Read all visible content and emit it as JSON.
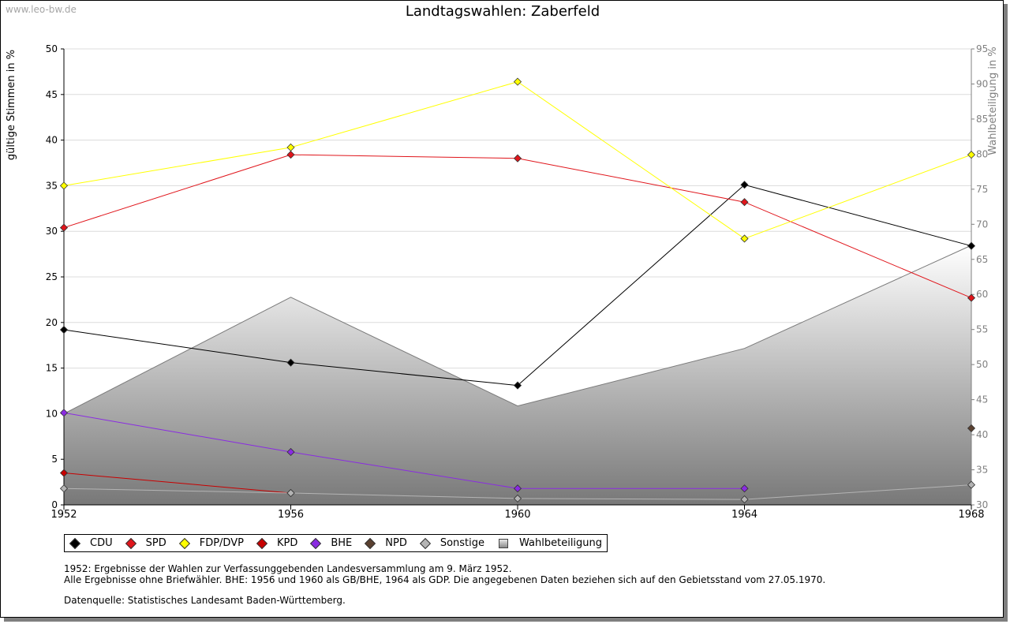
{
  "watermark": "www.leo-bw.de",
  "chart_data": {
    "type": "line",
    "title": "Landtagswahlen: Zaberfeld",
    "ylabel": "gültige Stimmen in %",
    "y2label": "Wahlbeteiligung in %",
    "x": [
      "1952",
      "1956",
      "1960",
      "1964",
      "1968"
    ],
    "ylim": [
      0,
      50
    ],
    "y2lim": [
      30,
      95
    ],
    "yticks": [
      "0",
      "5",
      "10",
      "15",
      "20",
      "25",
      "30",
      "35",
      "40",
      "45",
      "50"
    ],
    "y2ticks": [
      "30",
      "35",
      "40",
      "45",
      "50",
      "55",
      "60",
      "65",
      "70",
      "75",
      "80",
      "85",
      "90",
      "95"
    ],
    "series": [
      {
        "name": "CDU",
        "color": "#000000",
        "values": [
          19.2,
          15.6,
          13.1,
          35.1,
          28.4
        ]
      },
      {
        "name": "SPD",
        "color": "#e0151b",
        "values": [
          30.4,
          38.4,
          38.0,
          33.2,
          22.7
        ]
      },
      {
        "name": "FDP/DVP",
        "color": "#ffff00",
        "values": [
          35.0,
          39.2,
          46.4,
          29.2,
          38.4
        ]
      },
      {
        "name": "KPD",
        "color": "#c80000",
        "values": [
          3.5,
          1.3,
          null,
          null,
          null
        ]
      },
      {
        "name": "BHE",
        "color": "#8a2be2",
        "values": [
          10.1,
          5.8,
          1.8,
          1.8,
          null
        ]
      },
      {
        "name": "NPD",
        "color": "#5a4030",
        "values": [
          null,
          null,
          null,
          null,
          8.4
        ]
      },
      {
        "name": "Sonstige",
        "color": "#b4b4b4",
        "values": [
          1.8,
          1.3,
          0.7,
          0.6,
          2.2
        ]
      }
    ],
    "turnout": {
      "name": "Wahlbeteiligung",
      "values": [
        43.0,
        59.6,
        44.1,
        52.3,
        67.0
      ]
    }
  },
  "legend": [
    {
      "label": "CDU",
      "color": "#000000"
    },
    {
      "label": "SPD",
      "color": "#e0151b"
    },
    {
      "label": "FDP/DVP",
      "color": "#ffff00"
    },
    {
      "label": "KPD",
      "color": "#c80000"
    },
    {
      "label": "BHE",
      "color": "#8a2be2"
    },
    {
      "label": "NPD",
      "color": "#5a4030"
    },
    {
      "label": "Sonstige",
      "color": "#b4b4b4"
    },
    {
      "label": "Wahlbeteiligung",
      "color": "#b0b0b0"
    }
  ],
  "notes": {
    "line1": "1952: Ergebnisse der Wahlen zur Verfassunggebenden Landesversammlung am 9. März 1952.",
    "line2": "Alle Ergebnisse ohne Briefwähler. BHE: 1956 und 1960 als GB/BHE, 1964 als GDP. Die angegebenen Daten beziehen sich auf den Gebietsstand vom 27.05.1970.",
    "source": "Datenquelle: Statistisches Landesamt Baden-Württemberg."
  }
}
